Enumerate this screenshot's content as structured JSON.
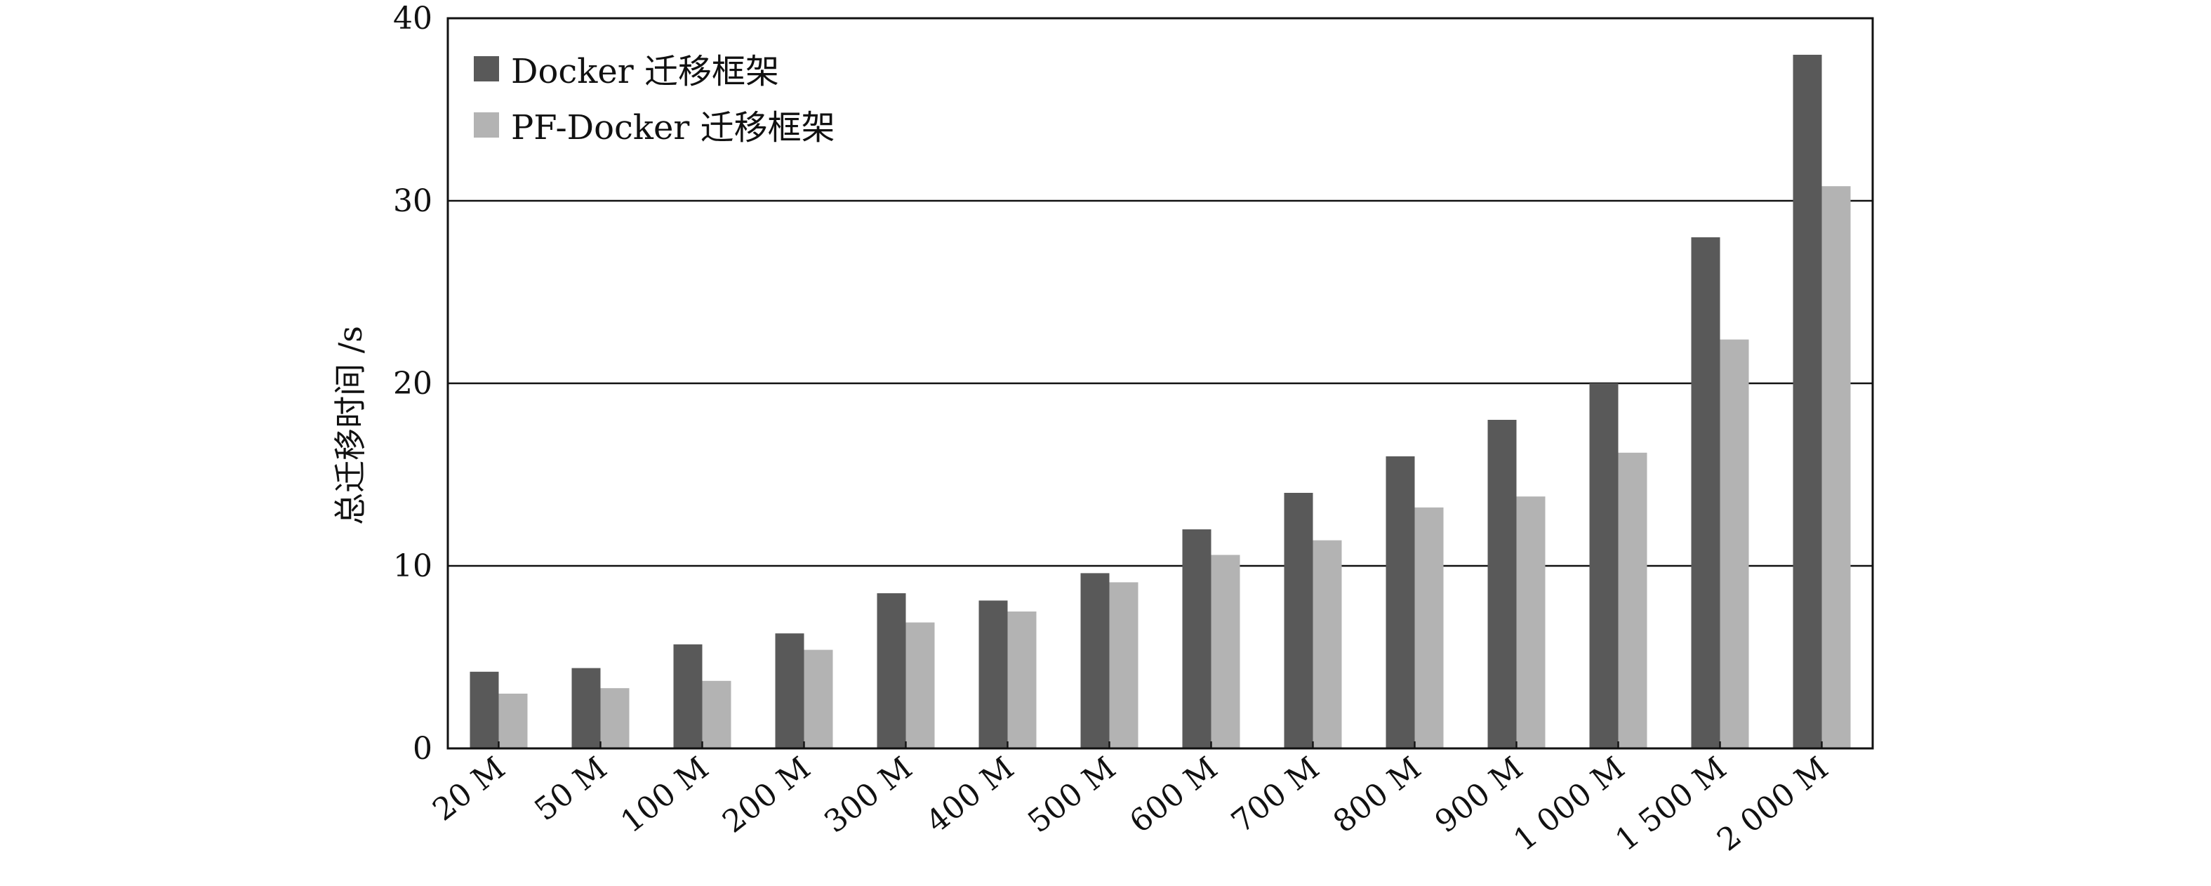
{
  "chart_data": {
    "type": "bar",
    "title": "",
    "xlabel": "",
    "ylabel": "总迁移时间 /s",
    "ylim": [
      0,
      40
    ],
    "yticks": [
      "0",
      "10",
      "20",
      "30",
      "40"
    ],
    "grid": "horizontal",
    "legend_position": "top-left",
    "categories": [
      "20 M",
      "50 M",
      "100 M",
      "200 M",
      "300 M",
      "400 M",
      "500 M",
      "600 M",
      "700 M",
      "800 M",
      "900 M",
      "1 000 M",
      "1 500 M",
      "2 000 M"
    ],
    "series": [
      {
        "name": "Docker 迁移框架",
        "color": "#595959",
        "values": [
          4.2,
          4.4,
          5.7,
          6.3,
          8.5,
          8.1,
          9.6,
          12.0,
          14.0,
          16.0,
          18.0,
          20.0,
          28.0,
          38.0
        ]
      },
      {
        "name": "PF-Docker 迁移框架",
        "color": "#b3b3b3",
        "values": [
          3.0,
          3.3,
          3.7,
          5.4,
          6.9,
          7.5,
          9.1,
          10.6,
          11.4,
          13.2,
          13.8,
          16.2,
          22.4,
          30.8
        ]
      }
    ]
  }
}
